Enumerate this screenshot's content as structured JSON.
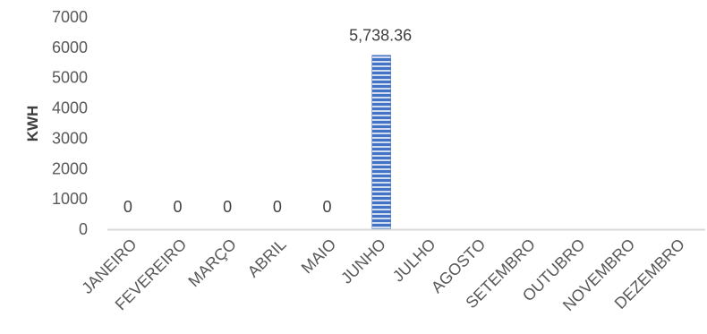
{
  "chart_data": {
    "type": "bar",
    "categories": [
      "JANEIRO",
      "FEVEREIRO",
      "MARÇO",
      "ABRIL",
      "MAIO",
      "JUNHO",
      "JULHO",
      "AGOSTO",
      "SETEMBRO",
      "OUTUBRO",
      "NOVEMBRO",
      "DEZEMBRO"
    ],
    "values": [
      0,
      0,
      0,
      0,
      0,
      5738.36,
      null,
      null,
      null,
      null,
      null,
      null
    ],
    "data_labels": [
      "0",
      "0",
      "0",
      "0",
      "0",
      "5,738.36",
      "",
      "",
      "",
      "",
      "",
      ""
    ],
    "title": "",
    "xlabel": "",
    "ylabel": "KWH",
    "ylim": [
      0,
      7000
    ],
    "yticks": [
      "0",
      "1000",
      "2000",
      "3000",
      "4000",
      "5000",
      "6000",
      "7000"
    ],
    "grid": false,
    "legend": "none",
    "colors": {
      "bar": "#4472C4",
      "stripe": "#ffffff",
      "axis": "#d9d9d9"
    }
  }
}
